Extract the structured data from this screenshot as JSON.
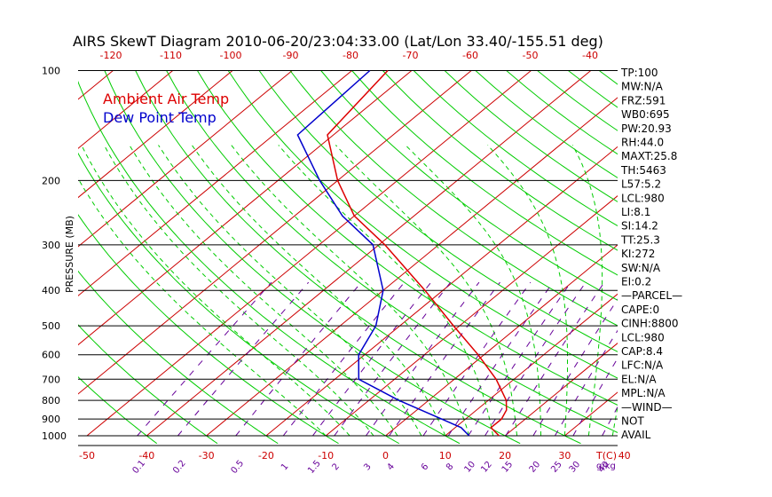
{
  "chart_data": {
    "type": "line",
    "title": "AIRS SkewT Diagram 2010-06-20/23:04:33.00 (Lat/Lon 33.40/-155.51 deg)",
    "ylabel": "PRESSURE (MB)",
    "xlabel_unit": "T(C)",
    "mixing_ratio_unit": "g/kg",
    "pressure_ticks": [
      "100",
      "200",
      "300",
      "400",
      "500",
      "600",
      "700",
      "800",
      "900",
      "1000"
    ],
    "pressure_values": [
      100,
      200,
      300,
      400,
      500,
      600,
      700,
      800,
      900,
      1000
    ],
    "top_temp_ticks": [
      "-120",
      "-110",
      "-100",
      "-90",
      "-80",
      "-70",
      "-60",
      "-50",
      "-40"
    ],
    "top_temp_values": [
      -120,
      -110,
      -100,
      -90,
      -80,
      -70,
      -60,
      -50,
      -40
    ],
    "bottom_temp_ticks": [
      "-50",
      "-40",
      "-30",
      "-20",
      "-10",
      "0",
      "10",
      "20",
      "30",
      "40"
    ],
    "bottom_temp_values": [
      -50,
      -40,
      -30,
      -20,
      -10,
      0,
      10,
      20,
      30,
      40
    ],
    "mixing_ratio_ticks": [
      "0.1",
      "0.2",
      "0.5",
      "1",
      "1.5",
      "2",
      "3",
      "4",
      "6",
      "8",
      "10",
      "12",
      "15",
      "20",
      "25",
      "30",
      "40"
    ],
    "mixing_ratio_values": [
      0.1,
      0.2,
      0.5,
      1,
      1.5,
      2,
      3,
      4,
      6,
      8,
      10,
      12,
      15,
      20,
      25,
      30,
      40
    ],
    "legend": [
      "Ambient Air Temp",
      "Dew Point Temp"
    ],
    "series": [
      {
        "name": "Ambient Air Temp",
        "color": "#dd0000",
        "points": [
          {
            "p": 100,
            "t": -74
          },
          {
            "p": 150,
            "t": -71
          },
          {
            "p": 200,
            "t": -60
          },
          {
            "p": 250,
            "t": -50
          },
          {
            "p": 300,
            "t": -39
          },
          {
            "p": 400,
            "t": -23
          },
          {
            "p": 500,
            "t": -11
          },
          {
            "p": 600,
            "t": -1
          },
          {
            "p": 700,
            "t": 7
          },
          {
            "p": 800,
            "t": 13
          },
          {
            "p": 850,
            "t": 15
          },
          {
            "p": 900,
            "t": 16
          },
          {
            "p": 950,
            "t": 16
          },
          {
            "p": 1000,
            "t": 19
          }
        ]
      },
      {
        "name": "Dew Point Temp",
        "color": "#0000cc",
        "points": [
          {
            "p": 100,
            "t": -77
          },
          {
            "p": 150,
            "t": -76
          },
          {
            "p": 200,
            "t": -63
          },
          {
            "p": 250,
            "t": -52
          },
          {
            "p": 300,
            "t": -41
          },
          {
            "p": 400,
            "t": -30
          },
          {
            "p": 500,
            "t": -24
          },
          {
            "p": 600,
            "t": -21
          },
          {
            "p": 700,
            "t": -16
          },
          {
            "p": 800,
            "t": -5
          },
          {
            "p": 900,
            "t": 6
          },
          {
            "p": 950,
            "t": 11
          },
          {
            "p": 1000,
            "t": 14
          }
        ]
      }
    ],
    "stats": [
      "TP:100",
      "MW:N/A",
      "FRZ:591",
      "WB0:695",
      "PW:20.93",
      "RH:44.0",
      "MAXT:25.8",
      "TH:5463",
      "L57:5.2",
      "LCL:980",
      "LI:8.1",
      "SI:14.2",
      "TT:25.3",
      "KI:272",
      "SW:N/A",
      "EI:0.2",
      "—PARCEL—",
      "CAPE:0",
      "CINH:8800",
      "LCL:980",
      "CAP:8.4",
      "LFC:N/A",
      "EL:N/A",
      "MPL:N/A",
      "—WIND—",
      "NOT",
      "AVAIL"
    ],
    "colors": {
      "isotherm": "#cc0000",
      "dry_adiabat": "#00cc00",
      "moist_adiabat": "#00cc00",
      "mixing_ratio": "#660099",
      "isobar": "#000000"
    }
  }
}
